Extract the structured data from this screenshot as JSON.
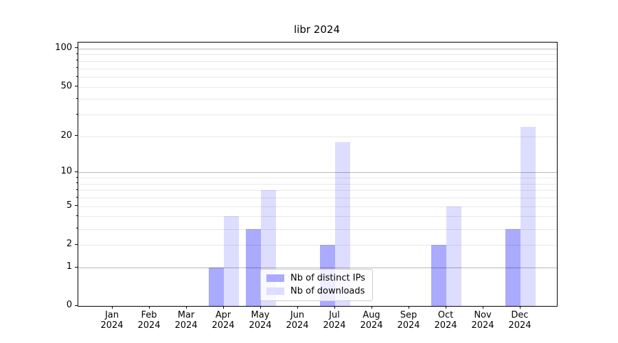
{
  "chart_data": {
    "type": "bar",
    "title": "libr 2024",
    "x_months": [
      "Jan",
      "Feb",
      "Mar",
      "Apr",
      "May",
      "Jun",
      "Jul",
      "Aug",
      "Sep",
      "Oct",
      "Nov",
      "Dec"
    ],
    "x_year_line": "2024",
    "series": [
      {
        "name": "Nb of distinct IPs",
        "color": "#aaaaff",
        "values": [
          0,
          0,
          0,
          1,
          3,
          0,
          2,
          0,
          0,
          2,
          0,
          3
        ]
      },
      {
        "name": "Nb of downloads",
        "color": "#ddddff",
        "values": [
          0,
          0,
          0,
          4,
          7,
          0,
          18,
          0,
          0,
          5,
          0,
          24
        ]
      }
    ],
    "yscale": "log1p",
    "ylim": [
      0,
      112
    ],
    "y_labeled_ticks": [
      0,
      1,
      2,
      5,
      10,
      20,
      50,
      100
    ],
    "y_major_gridlines": [
      1,
      10,
      100
    ],
    "y_minor_gridlines": [
      2,
      3,
      4,
      5,
      6,
      7,
      8,
      9,
      20,
      30,
      40,
      50,
      60,
      70,
      80,
      90
    ],
    "grid": true,
    "legend_position": "lower center"
  },
  "colors": {
    "background": "#ffffff",
    "axis": "#000000",
    "text": "#000000",
    "major_grid": "rgba(0,0,0,0.28)",
    "minor_grid": "rgba(0,0,0,0.09)",
    "legend_border": "#cccccc",
    "legend_bg": "rgba(255,255,255,0.8)"
  }
}
